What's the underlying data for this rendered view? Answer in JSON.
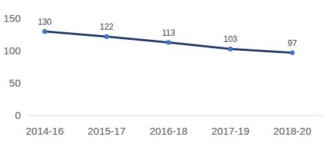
{
  "chart_data": {
    "type": "line",
    "categories": [
      "2014-16",
      "2015-17",
      "2016-18",
      "2017-19",
      "2018-20"
    ],
    "values": [
      130,
      122,
      113,
      103,
      97
    ],
    "color": "#203864",
    "marker": "circle",
    "ylim": [
      0,
      150
    ],
    "yticks": [
      0,
      50,
      100,
      150
    ],
    "grid": false,
    "data_labels": true
  }
}
